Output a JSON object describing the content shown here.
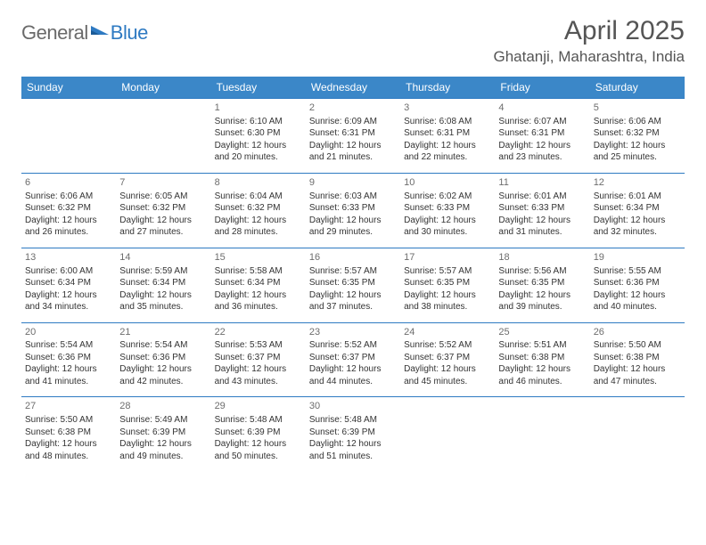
{
  "brand": {
    "word1": "General",
    "word2": "Blue"
  },
  "title": "April 2025",
  "location": "Ghatanji, Maharashtra, India",
  "colors": {
    "header_bg": "#3b87c8",
    "header_text": "#ffffff",
    "border": "#2e7ac2",
    "text": "#333333",
    "muted": "#6d6d6d",
    "logo_gray": "#6a6a6a",
    "logo_blue": "#2e7ac2",
    "page_bg": "#ffffff"
  },
  "typography": {
    "title_fontsize": 30,
    "location_fontsize": 17,
    "header_fontsize": 12,
    "daynum_fontsize": 11,
    "cell_fontsize": 10
  },
  "weekdays": [
    "Sunday",
    "Monday",
    "Tuesday",
    "Wednesday",
    "Thursday",
    "Friday",
    "Saturday"
  ],
  "weeks": [
    [
      null,
      null,
      {
        "n": "1",
        "sr": "Sunrise: 6:10 AM",
        "ss": "Sunset: 6:30 PM",
        "dl": "Daylight: 12 hours and 20 minutes."
      },
      {
        "n": "2",
        "sr": "Sunrise: 6:09 AM",
        "ss": "Sunset: 6:31 PM",
        "dl": "Daylight: 12 hours and 21 minutes."
      },
      {
        "n": "3",
        "sr": "Sunrise: 6:08 AM",
        "ss": "Sunset: 6:31 PM",
        "dl": "Daylight: 12 hours and 22 minutes."
      },
      {
        "n": "4",
        "sr": "Sunrise: 6:07 AM",
        "ss": "Sunset: 6:31 PM",
        "dl": "Daylight: 12 hours and 23 minutes."
      },
      {
        "n": "5",
        "sr": "Sunrise: 6:06 AM",
        "ss": "Sunset: 6:32 PM",
        "dl": "Daylight: 12 hours and 25 minutes."
      }
    ],
    [
      {
        "n": "6",
        "sr": "Sunrise: 6:06 AM",
        "ss": "Sunset: 6:32 PM",
        "dl": "Daylight: 12 hours and 26 minutes."
      },
      {
        "n": "7",
        "sr": "Sunrise: 6:05 AM",
        "ss": "Sunset: 6:32 PM",
        "dl": "Daylight: 12 hours and 27 minutes."
      },
      {
        "n": "8",
        "sr": "Sunrise: 6:04 AM",
        "ss": "Sunset: 6:32 PM",
        "dl": "Daylight: 12 hours and 28 minutes."
      },
      {
        "n": "9",
        "sr": "Sunrise: 6:03 AM",
        "ss": "Sunset: 6:33 PM",
        "dl": "Daylight: 12 hours and 29 minutes."
      },
      {
        "n": "10",
        "sr": "Sunrise: 6:02 AM",
        "ss": "Sunset: 6:33 PM",
        "dl": "Daylight: 12 hours and 30 minutes."
      },
      {
        "n": "11",
        "sr": "Sunrise: 6:01 AM",
        "ss": "Sunset: 6:33 PM",
        "dl": "Daylight: 12 hours and 31 minutes."
      },
      {
        "n": "12",
        "sr": "Sunrise: 6:01 AM",
        "ss": "Sunset: 6:34 PM",
        "dl": "Daylight: 12 hours and 32 minutes."
      }
    ],
    [
      {
        "n": "13",
        "sr": "Sunrise: 6:00 AM",
        "ss": "Sunset: 6:34 PM",
        "dl": "Daylight: 12 hours and 34 minutes."
      },
      {
        "n": "14",
        "sr": "Sunrise: 5:59 AM",
        "ss": "Sunset: 6:34 PM",
        "dl": "Daylight: 12 hours and 35 minutes."
      },
      {
        "n": "15",
        "sr": "Sunrise: 5:58 AM",
        "ss": "Sunset: 6:34 PM",
        "dl": "Daylight: 12 hours and 36 minutes."
      },
      {
        "n": "16",
        "sr": "Sunrise: 5:57 AM",
        "ss": "Sunset: 6:35 PM",
        "dl": "Daylight: 12 hours and 37 minutes."
      },
      {
        "n": "17",
        "sr": "Sunrise: 5:57 AM",
        "ss": "Sunset: 6:35 PM",
        "dl": "Daylight: 12 hours and 38 minutes."
      },
      {
        "n": "18",
        "sr": "Sunrise: 5:56 AM",
        "ss": "Sunset: 6:35 PM",
        "dl": "Daylight: 12 hours and 39 minutes."
      },
      {
        "n": "19",
        "sr": "Sunrise: 5:55 AM",
        "ss": "Sunset: 6:36 PM",
        "dl": "Daylight: 12 hours and 40 minutes."
      }
    ],
    [
      {
        "n": "20",
        "sr": "Sunrise: 5:54 AM",
        "ss": "Sunset: 6:36 PM",
        "dl": "Daylight: 12 hours and 41 minutes."
      },
      {
        "n": "21",
        "sr": "Sunrise: 5:54 AM",
        "ss": "Sunset: 6:36 PM",
        "dl": "Daylight: 12 hours and 42 minutes."
      },
      {
        "n": "22",
        "sr": "Sunrise: 5:53 AM",
        "ss": "Sunset: 6:37 PM",
        "dl": "Daylight: 12 hours and 43 minutes."
      },
      {
        "n": "23",
        "sr": "Sunrise: 5:52 AM",
        "ss": "Sunset: 6:37 PM",
        "dl": "Daylight: 12 hours and 44 minutes."
      },
      {
        "n": "24",
        "sr": "Sunrise: 5:52 AM",
        "ss": "Sunset: 6:37 PM",
        "dl": "Daylight: 12 hours and 45 minutes."
      },
      {
        "n": "25",
        "sr": "Sunrise: 5:51 AM",
        "ss": "Sunset: 6:38 PM",
        "dl": "Daylight: 12 hours and 46 minutes."
      },
      {
        "n": "26",
        "sr": "Sunrise: 5:50 AM",
        "ss": "Sunset: 6:38 PM",
        "dl": "Daylight: 12 hours and 47 minutes."
      }
    ],
    [
      {
        "n": "27",
        "sr": "Sunrise: 5:50 AM",
        "ss": "Sunset: 6:38 PM",
        "dl": "Daylight: 12 hours and 48 minutes."
      },
      {
        "n": "28",
        "sr": "Sunrise: 5:49 AM",
        "ss": "Sunset: 6:39 PM",
        "dl": "Daylight: 12 hours and 49 minutes."
      },
      {
        "n": "29",
        "sr": "Sunrise: 5:48 AM",
        "ss": "Sunset: 6:39 PM",
        "dl": "Daylight: 12 hours and 50 minutes."
      },
      {
        "n": "30",
        "sr": "Sunrise: 5:48 AM",
        "ss": "Sunset: 6:39 PM",
        "dl": "Daylight: 12 hours and 51 minutes."
      },
      null,
      null,
      null
    ]
  ]
}
